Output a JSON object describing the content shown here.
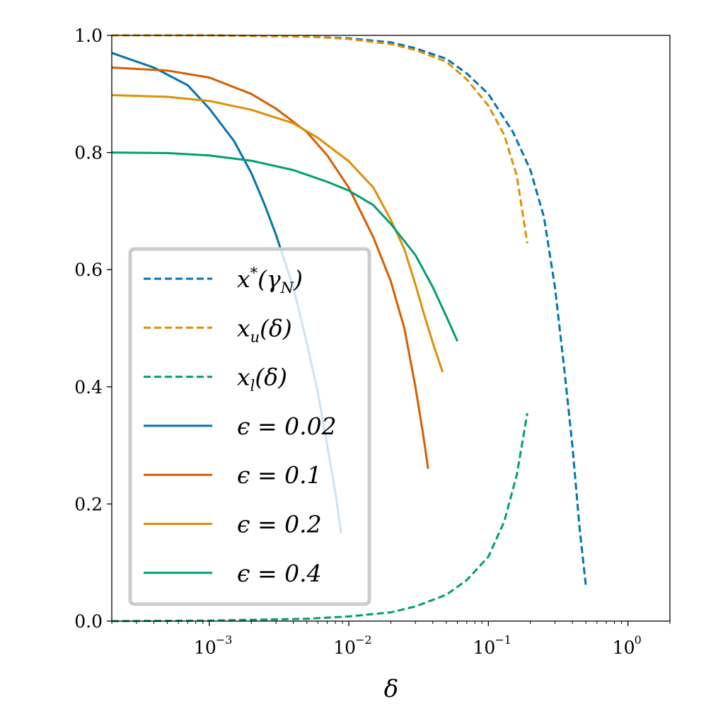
{
  "chart_data": {
    "type": "line",
    "xlabel": "δ",
    "ylabel": "",
    "xscale": "log",
    "xlim": [
      0.0002,
      2.0
    ],
    "ylim": [
      0.0,
      1.0
    ],
    "grid": false,
    "legend_position": "lower-left",
    "y_ticks": [
      {
        "value": 0.0,
        "label": "0.0"
      },
      {
        "value": 0.2,
        "label": "0.2"
      },
      {
        "value": 0.4,
        "label": "0.4"
      },
      {
        "value": 0.6,
        "label": "0.6"
      },
      {
        "value": 0.8,
        "label": "0.8"
      },
      {
        "value": 1.0,
        "label": "1.0"
      }
    ],
    "x_ticks": [
      {
        "value": 0.001,
        "base": "10",
        "exp": "−3"
      },
      {
        "value": 0.01,
        "base": "10",
        "exp": "−2"
      },
      {
        "value": 0.1,
        "base": "10",
        "exp": "−1"
      },
      {
        "value": 1.0,
        "base": "10",
        "exp": "0"
      }
    ],
    "series": [
      {
        "name": "x*(γN)",
        "color": "#0173b2",
        "dash": "dashed",
        "points": [
          [
            0.0002,
            1.0
          ],
          [
            0.001,
            1.0
          ],
          [
            0.005,
            0.998
          ],
          [
            0.01,
            0.995
          ],
          [
            0.02,
            0.988
          ],
          [
            0.03,
            0.978
          ],
          [
            0.05,
            0.96
          ],
          [
            0.07,
            0.935
          ],
          [
            0.1,
            0.9
          ],
          [
            0.15,
            0.835
          ],
          [
            0.2,
            0.77
          ],
          [
            0.25,
            0.69
          ],
          [
            0.3,
            0.57
          ],
          [
            0.35,
            0.43
          ],
          [
            0.4,
            0.3
          ],
          [
            0.45,
            0.16
          ],
          [
            0.5,
            0.06
          ]
        ]
      },
      {
        "name": "xu(δ)",
        "color": "#de8f05",
        "dash": "dashed",
        "points": [
          [
            0.0002,
            1.0
          ],
          [
            0.001,
            1.0
          ],
          [
            0.005,
            0.998
          ],
          [
            0.01,
            0.994
          ],
          [
            0.02,
            0.985
          ],
          [
            0.03,
            0.975
          ],
          [
            0.05,
            0.955
          ],
          [
            0.07,
            0.925
          ],
          [
            0.1,
            0.88
          ],
          [
            0.13,
            0.83
          ],
          [
            0.16,
            0.76
          ],
          [
            0.19,
            0.645
          ]
        ]
      },
      {
        "name": "xl(δ)",
        "color": "#029e73",
        "dash": "dashed",
        "points": [
          [
            0.0002,
            0.0
          ],
          [
            0.001,
            0.001
          ],
          [
            0.005,
            0.004
          ],
          [
            0.01,
            0.008
          ],
          [
            0.02,
            0.015
          ],
          [
            0.03,
            0.025
          ],
          [
            0.05,
            0.045
          ],
          [
            0.07,
            0.07
          ],
          [
            0.1,
            0.11
          ],
          [
            0.13,
            0.17
          ],
          [
            0.16,
            0.25
          ],
          [
            0.19,
            0.355
          ]
        ]
      },
      {
        "name": "ϵ = 0.02",
        "color": "#0173b2",
        "dash": "solid",
        "points": [
          [
            0.0002,
            0.97
          ],
          [
            0.0004,
            0.945
          ],
          [
            0.0007,
            0.915
          ],
          [
            0.001,
            0.875
          ],
          [
            0.0015,
            0.82
          ],
          [
            0.002,
            0.765
          ],
          [
            0.0025,
            0.71
          ],
          [
            0.003,
            0.66
          ],
          [
            0.004,
            0.57
          ],
          [
            0.005,
            0.475
          ],
          [
            0.006,
            0.39
          ],
          [
            0.007,
            0.3
          ],
          [
            0.008,
            0.22
          ],
          [
            0.0088,
            0.15
          ]
        ]
      },
      {
        "name": "ϵ = 0.1",
        "color": "#d55e00",
        "dash": "solid",
        "points": [
          [
            0.0002,
            0.945
          ],
          [
            0.0005,
            0.94
          ],
          [
            0.001,
            0.928
          ],
          [
            0.002,
            0.9
          ],
          [
            0.003,
            0.875
          ],
          [
            0.005,
            0.835
          ],
          [
            0.007,
            0.795
          ],
          [
            0.01,
            0.74
          ],
          [
            0.015,
            0.655
          ],
          [
            0.02,
            0.58
          ],
          [
            0.025,
            0.5
          ],
          [
            0.03,
            0.4
          ],
          [
            0.034,
            0.32
          ],
          [
            0.037,
            0.26
          ]
        ]
      },
      {
        "name": "ϵ = 0.2",
        "color": "#de8f05",
        "dash": "solid",
        "points": [
          [
            0.0002,
            0.898
          ],
          [
            0.0005,
            0.895
          ],
          [
            0.001,
            0.888
          ],
          [
            0.002,
            0.873
          ],
          [
            0.004,
            0.85
          ],
          [
            0.006,
            0.825
          ],
          [
            0.01,
            0.785
          ],
          [
            0.015,
            0.74
          ],
          [
            0.02,
            0.685
          ],
          [
            0.025,
            0.635
          ],
          [
            0.03,
            0.575
          ],
          [
            0.035,
            0.52
          ],
          [
            0.04,
            0.475
          ],
          [
            0.047,
            0.425
          ]
        ]
      },
      {
        "name": "ϵ = 0.4",
        "color": "#029e73",
        "dash": "solid",
        "points": [
          [
            0.0002,
            0.8
          ],
          [
            0.0005,
            0.799
          ],
          [
            0.001,
            0.795
          ],
          [
            0.002,
            0.786
          ],
          [
            0.004,
            0.77
          ],
          [
            0.007,
            0.75
          ],
          [
            0.01,
            0.735
          ],
          [
            0.015,
            0.71
          ],
          [
            0.02,
            0.678
          ],
          [
            0.03,
            0.625
          ],
          [
            0.04,
            0.57
          ],
          [
            0.05,
            0.52
          ],
          [
            0.06,
            0.478
          ]
        ]
      }
    ]
  },
  "legend": [
    {
      "main": "x",
      "sup": "*",
      "paren": "(γ",
      "sub": "N",
      "close": ")"
    },
    {
      "main": "x",
      "sub": "u",
      "paren": "(δ)"
    },
    {
      "main": "x",
      "sub": "l",
      "paren": "(δ)"
    },
    {
      "text": "ϵ = 0.02"
    },
    {
      "text": "ϵ = 0.1"
    },
    {
      "text": "ϵ = 0.2"
    },
    {
      "text": "ϵ = 0.4"
    }
  ]
}
